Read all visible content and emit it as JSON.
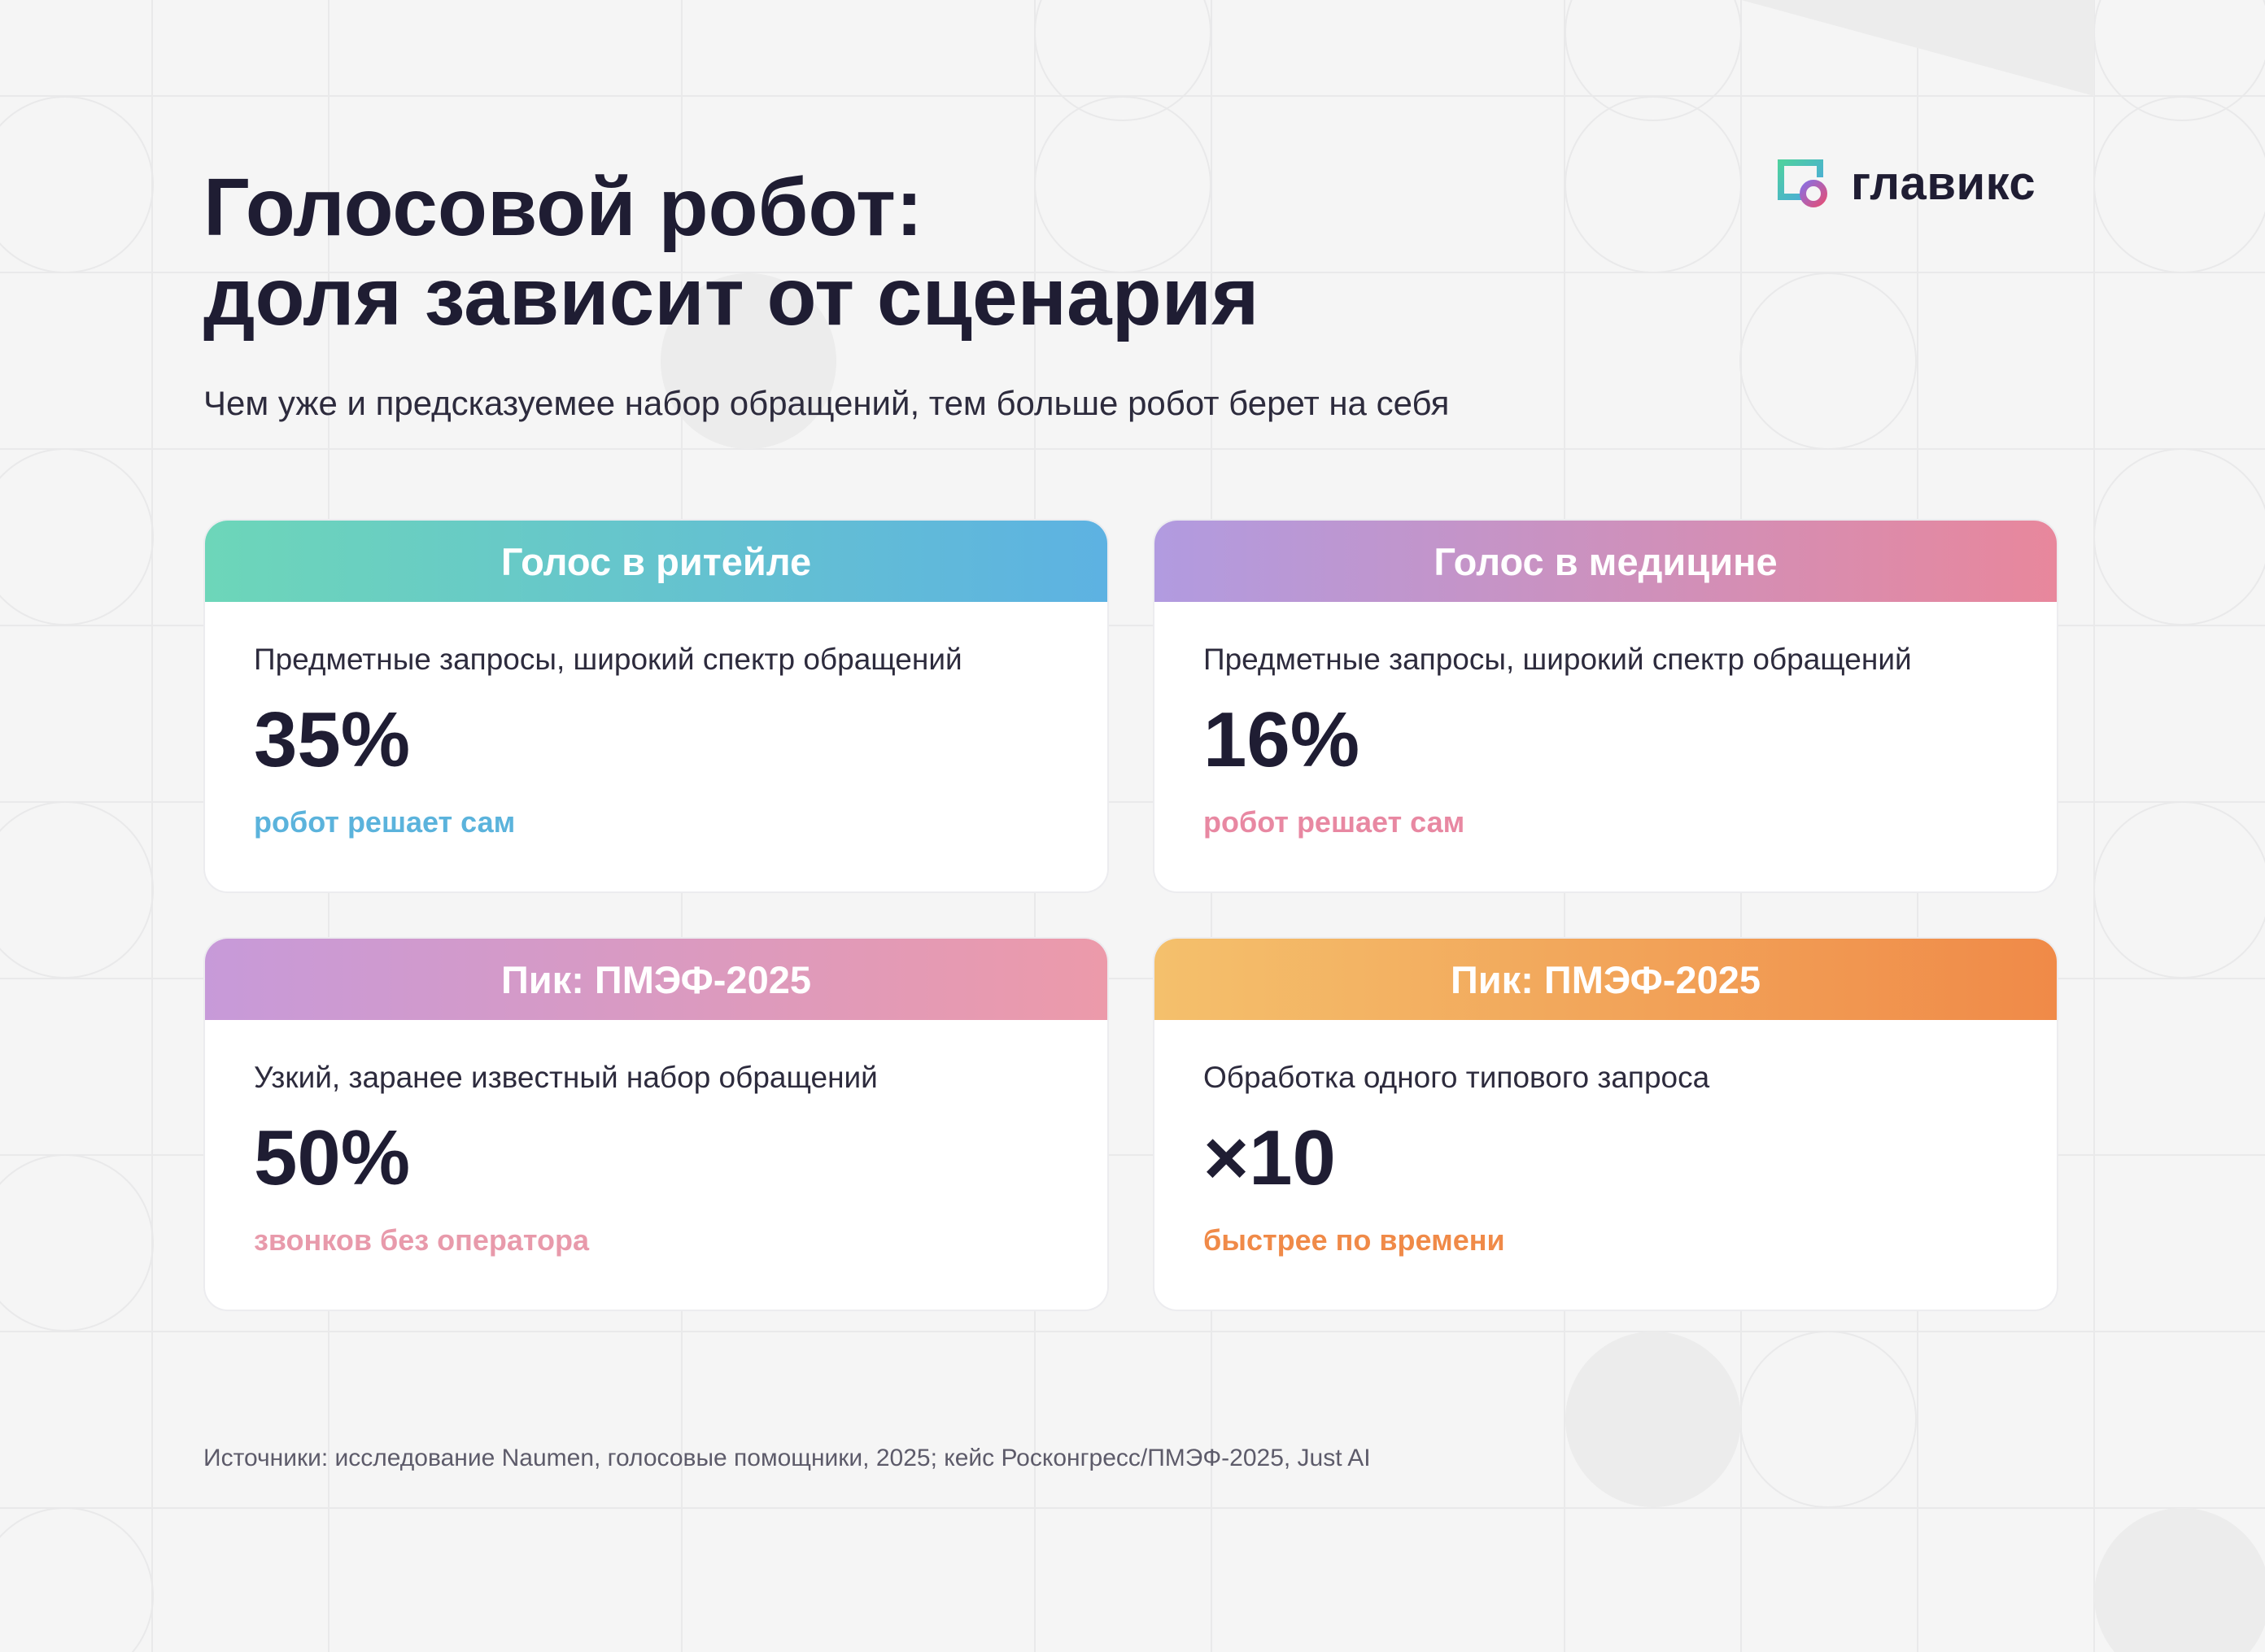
{
  "header": {
    "title_line1": "Голосовой робот:",
    "title_line2": "доля зависит от сценария",
    "subtitle": "Чем уже и предсказуемее набор обращений, тем больше робот берет на себя"
  },
  "logo": {
    "text": "главикс",
    "icon": "glabix-logo-icon"
  },
  "cards": [
    {
      "title": "Голос в ритейле",
      "description": "Предметные запросы, широкий спектр обращений",
      "value": "35%",
      "note": "робот решает сам",
      "accent": "#5bb3dc"
    },
    {
      "title": "Голос в медицине",
      "description": "Предметные запросы, широкий спектр обращений",
      "value": "16%",
      "note": "робот решает сам",
      "accent": "#e888a2"
    },
    {
      "title": "Пик: ПМЭФ-2025",
      "description": "Узкий, заранее известный набор обращений",
      "value": "50%",
      "note": "звонков без оператора",
      "accent": "#e89aab"
    },
    {
      "title": "Пик: ПМЭФ-2025",
      "description": "Обработка одного типового запроса",
      "value": "×10",
      "note": "быстрее по времени",
      "accent": "#f08a48"
    }
  ],
  "footer": {
    "sources": "Источники: исследование Naumen, голосовые помощники, 2025; кейс Росконгресс/ПМЭФ-2025, Just AI"
  }
}
